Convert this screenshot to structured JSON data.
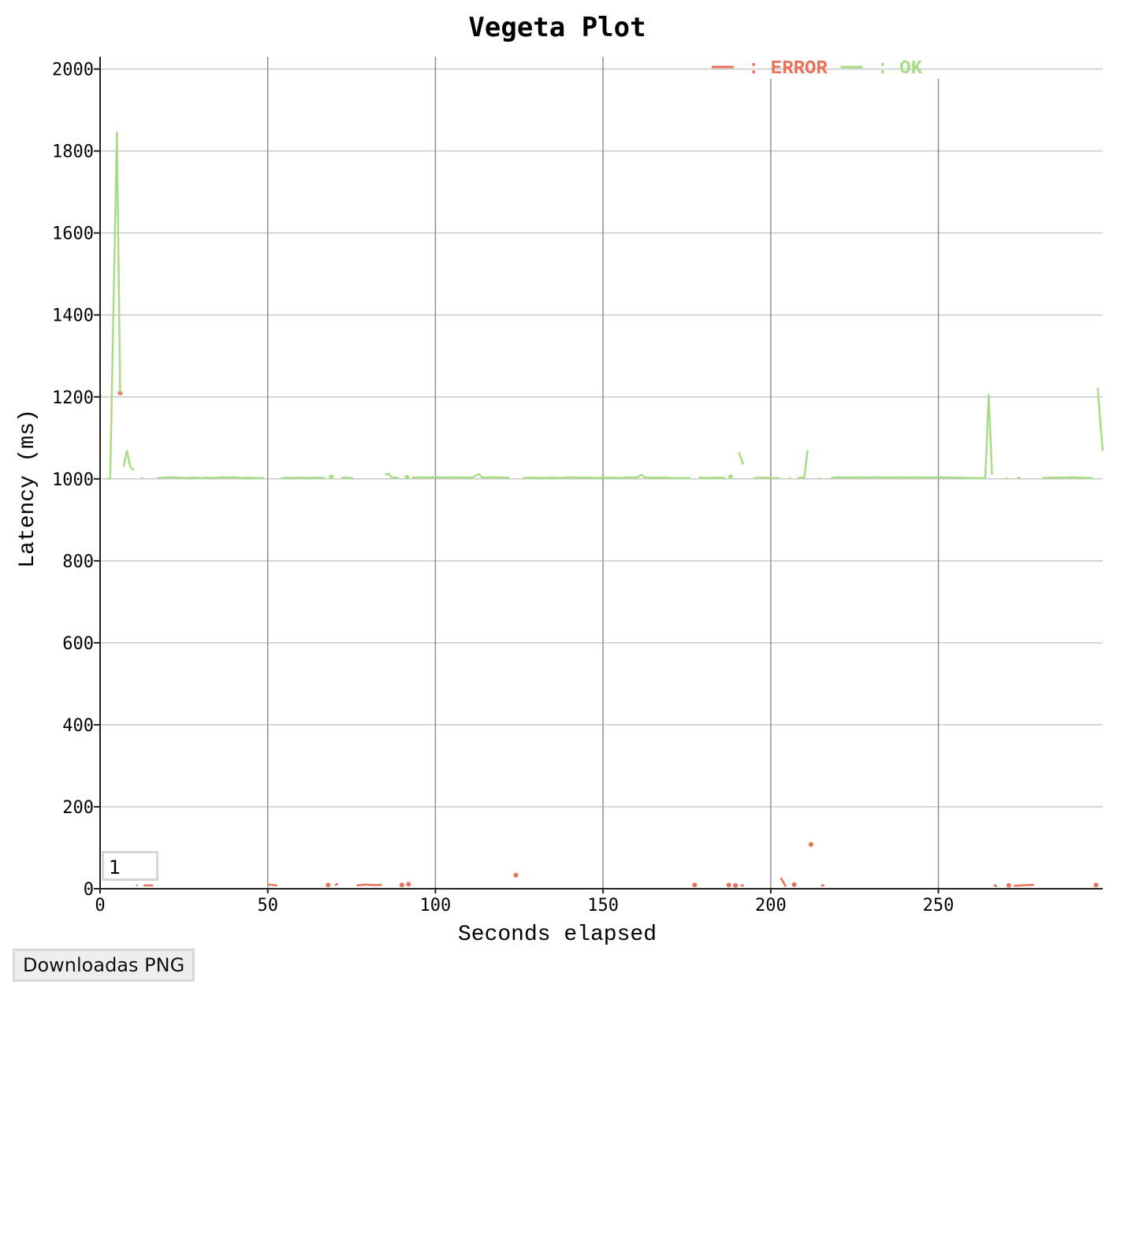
{
  "chart_data": {
    "type": "line",
    "title": "Vegeta Plot",
    "xlabel": "Seconds elapsed",
    "ylabel": "Latency (ms)",
    "xlim": [
      0,
      299
    ],
    "ylim": [
      0,
      2030
    ],
    "xticks": [
      0,
      50,
      100,
      150,
      200,
      250
    ],
    "yticks": [
      0,
      200,
      400,
      600,
      800,
      1000,
      1200,
      1400,
      1600,
      1800,
      2000
    ],
    "grid": true,
    "legend_position": "top-right",
    "series": [
      {
        "name": "ERROR",
        "color": "#e8735b",
        "segments": [
          [
            [
              10.8,
              8
            ],
            [
              11.2,
              8
            ]
          ],
          [
            [
              13,
              8
            ],
            [
              15.8,
              8
            ]
          ],
          [
            [
              50,
              10
            ],
            [
              52.8,
              8
            ]
          ],
          [
            [
              70,
              9
            ],
            [
              71,
              12
            ]
          ],
          [
            [
              76.5,
              8
            ],
            [
              79,
              10
            ],
            [
              81,
              9
            ],
            [
              84,
              9
            ]
          ],
          [
            [
              191,
              8
            ],
            [
              192,
              8
            ]
          ],
          [
            [
              203,
              27
            ],
            [
              204.5,
              5
            ]
          ],
          [
            [
              215,
              8
            ],
            [
              216,
              8
            ]
          ],
          [
            [
              266.5,
              9
            ],
            [
              267.5,
              6
            ]
          ],
          [
            [
              272.5,
              7
            ],
            [
              277,
              9
            ],
            [
              278.5,
              9
            ]
          ]
        ],
        "points": [
          [
            6,
            1210
          ],
          [
            68,
            9
          ],
          [
            90,
            9
          ],
          [
            92,
            11
          ],
          [
            124,
            33
          ],
          [
            177.3,
            9
          ],
          [
            187.5,
            9
          ],
          [
            189.5,
            8
          ],
          [
            207,
            10
          ],
          [
            212,
            108
          ],
          [
            271,
            8
          ],
          [
            297,
            9
          ]
        ]
      },
      {
        "name": "OK",
        "color": "#a8dc85",
        "segments": [
          [
            [
              0,
              1200
            ],
            [
              0.6,
              1201
            ]
          ],
          [
            [
              2,
              1000
            ],
            [
              3,
              1001
            ],
            [
              5,
              1845
            ],
            [
              6,
              1210
            ]
          ],
          [
            [
              7,
              1030
            ],
            [
              8,
              1068
            ],
            [
              9,
              1030
            ],
            [
              10,
              1020
            ]
          ],
          [
            [
              12.3,
              1003
            ],
            [
              12.8,
              1002
            ]
          ],
          [
            [
              17,
              1002
            ],
            [
              19,
              1003
            ],
            [
              21,
              1004
            ],
            [
              23,
              1003
            ],
            [
              26,
              1002
            ],
            [
              28,
              1003
            ],
            [
              30,
              1002
            ],
            [
              32,
              1003
            ],
            [
              34,
              1002
            ],
            [
              36,
              1004
            ],
            [
              38,
              1003
            ],
            [
              40,
              1004
            ],
            [
              42,
              1002
            ],
            [
              44,
              1003
            ],
            [
              46,
              1002
            ],
            [
              48.7,
              1002
            ]
          ],
          [
            [
              54,
              1001
            ],
            [
              56,
              1003
            ],
            [
              58,
              1002
            ],
            [
              60,
              1003
            ],
            [
              62,
              1002
            ],
            [
              64,
              1003
            ],
            [
              66,
              1002
            ],
            [
              67,
              1003
            ]
          ],
          [
            [
              72,
              1003
            ],
            [
              75.4,
              1002
            ]
          ],
          [
            [
              85,
              1010
            ],
            [
              86,
              1013
            ],
            [
              87,
              1003
            ],
            [
              89,
              1003
            ]
          ],
          [
            [
              93,
              1003
            ],
            [
              96,
              1004
            ],
            [
              98,
              1003
            ],
            [
              100,
              1004
            ],
            [
              103,
              1003
            ],
            [
              106,
              1004
            ],
            [
              108,
              1003
            ],
            [
              111,
              1003
            ],
            [
              113,
              1012
            ],
            [
              114,
              1003
            ],
            [
              117,
              1004
            ],
            [
              120,
              1003
            ],
            [
              122,
              1003
            ]
          ],
          [
            [
              126,
              1002
            ],
            [
              129,
              1003
            ],
            [
              132,
              1002
            ],
            [
              135,
              1003
            ],
            [
              137,
              1002
            ],
            [
              140,
              1004
            ],
            [
              143,
              1003
            ],
            [
              146,
              1003
            ],
            [
              148,
              1002
            ],
            [
              150,
              1003
            ],
            [
              152,
              1003
            ],
            [
              155,
              1002
            ],
            [
              158,
              1004
            ],
            [
              160,
              1003
            ],
            [
              161.5,
              1010
            ],
            [
              162.5,
              1003
            ],
            [
              165,
              1003
            ],
            [
              168,
              1003
            ],
            [
              171,
              1002
            ],
            [
              176,
              1002
            ]
          ],
          [
            [
              178.5,
              1003
            ],
            [
              181,
              1002
            ],
            [
              184,
              1003
            ],
            [
              186.5,
              1002
            ]
          ],
          [
            [
              190.5,
              1065
            ],
            [
              191.8,
              1035
            ]
          ],
          [
            [
              195,
              1002
            ],
            [
              198,
              1003
            ],
            [
              201,
              1002
            ],
            [
              202.5,
              1002
            ]
          ],
          [
            [
              205.5,
              1002
            ],
            [
              206,
              1002
            ]
          ],
          [
            [
              208,
              1002
            ],
            [
              210,
              1004
            ],
            [
              211,
              1070
            ]
          ],
          [
            [
              214.3,
              1002
            ],
            [
              214.7,
              1002
            ]
          ],
          [
            [
              218,
              1002
            ],
            [
              220,
              1004
            ],
            [
              223,
              1003
            ],
            [
              226,
              1004
            ],
            [
              229,
              1003
            ],
            [
              232,
              1004
            ],
            [
              235,
              1003
            ],
            [
              238,
              1004
            ],
            [
              241,
              1003
            ],
            [
              244,
              1004
            ],
            [
              247,
              1003
            ],
            [
              250,
              1004
            ],
            [
              253,
              1003
            ],
            [
              256,
              1003
            ],
            [
              259,
              1002
            ],
            [
              262,
              1002
            ],
            [
              264,
              1002
            ],
            [
              265,
              1205
            ],
            [
              266,
              1010
            ]
          ],
          [
            [
              270.3,
              1002
            ],
            [
              270.7,
              1002
            ]
          ],
          [
            [
              273.5,
              1003
            ],
            [
              274.5,
              1002
            ]
          ],
          [
            [
              281,
              1002
            ],
            [
              284,
              1003
            ],
            [
              287,
              1003
            ],
            [
              290,
              1004
            ],
            [
              292,
              1003
            ],
            [
              295,
              1002
            ],
            [
              296,
              1002
            ]
          ],
          [
            [
              297.5,
              1222
            ],
            [
              299,
              1068
            ]
          ]
        ],
        "points": [
          [
            69,
            1005
          ],
          [
            91.5,
            1004
          ],
          [
            188,
            1005
          ]
        ]
      }
    ]
  },
  "controls": {
    "range_value": "1",
    "download_label": "Downloadas PNG"
  }
}
